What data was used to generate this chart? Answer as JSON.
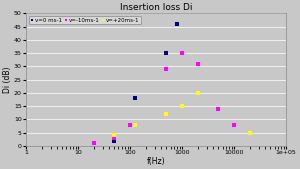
{
  "title": "Insertion loss Di",
  "xlabel": "f(Hz)",
  "ylabel": "Di (dB)",
  "xlim": [
    1,
    100000
  ],
  "ylim": [
    0,
    50
  ],
  "yticks": [
    0,
    5,
    10,
    15,
    20,
    25,
    30,
    35,
    40,
    45,
    50
  ],
  "bg_color": "#c8c8c8",
  "plot_bg_color": "#c8c8c8",
  "grid_color": "#ffffff",
  "series": [
    {
      "label": "v=0 ms-1",
      "color": "#00007F",
      "marker": "s",
      "x": [
        20,
        50,
        125,
        500,
        800
      ],
      "y": [
        1,
        2,
        18,
        35,
        46
      ]
    },
    {
      "label": "v=-10ms-1",
      "color": "#FF00FF",
      "marker": "s",
      "x": [
        20,
        50,
        100,
        500,
        1000,
        2000,
        5000,
        10000,
        20000
      ],
      "y": [
        1,
        3,
        8,
        29,
        35,
        31,
        14,
        8,
        5
      ]
    },
    {
      "label": "v=+20ms-1",
      "color": "#FFFF00",
      "marker": "s",
      "x": [
        50,
        125,
        500,
        1000,
        2000,
        20000
      ],
      "y": [
        4,
        8,
        12,
        15,
        20,
        5
      ]
    }
  ]
}
